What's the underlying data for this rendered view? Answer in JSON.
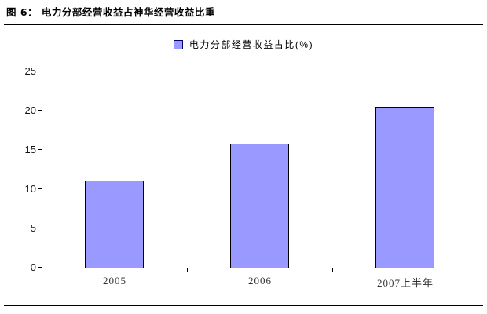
{
  "figure": {
    "title": "图 6：  电力分部经营收益占神华经营收益比重"
  },
  "chart_data": {
    "type": "bar",
    "title": "图 6：  电力分部经营收益占神华经营收益比重",
    "legend": [
      "电力分部经营收益占比(%)"
    ],
    "legend_position": "top-center",
    "categories": [
      "2005",
      "2006",
      "2007上半年"
    ],
    "values": [
      11.0,
      15.7,
      20.4
    ],
    "xlabel": "",
    "ylabel": "",
    "ylim": [
      0,
      25
    ],
    "yticks": [
      0,
      5,
      10,
      15,
      20,
      25
    ],
    "grid": false,
    "colors": {
      "bar_fill": "#9999FF",
      "bar_border": "#000000",
      "legend_swatch_border": "#000066",
      "axis": "#000000",
      "rule": "#000000"
    }
  }
}
